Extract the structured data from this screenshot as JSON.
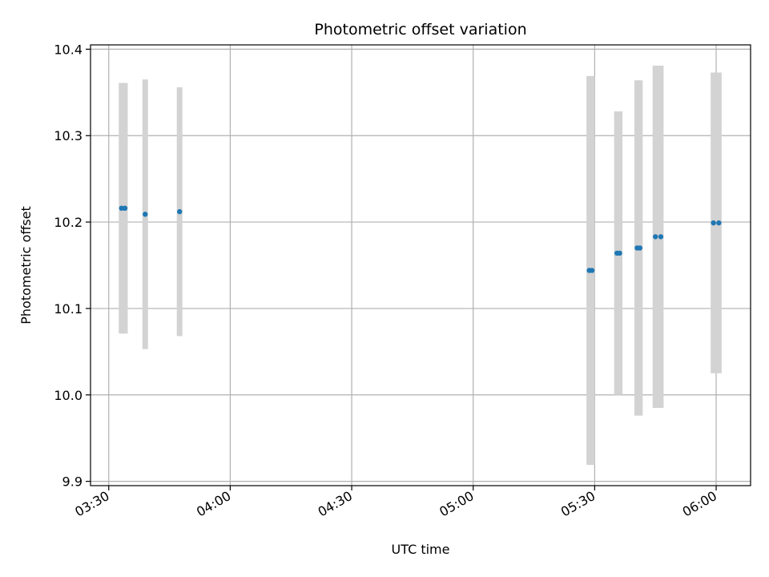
{
  "chart_data": {
    "type": "scatter",
    "title": "Photometric offset variation",
    "xlabel": "UTC time",
    "ylabel": "Photometric offset",
    "x_ticks": [
      "03:30",
      "04:00",
      "04:30",
      "05:00",
      "05:30",
      "06:00"
    ],
    "y_ticks": [
      "9.9",
      "10.0",
      "10.1",
      "10.2",
      "10.3",
      "10.4"
    ],
    "xlim": [
      "03:25:30",
      "06:08:30"
    ],
    "ylim": [
      9.895,
      10.405
    ],
    "grid": true,
    "colors": {
      "point": "#1f77b4",
      "errorbar": "#d3d3d3",
      "grid": "#b0b0b0"
    },
    "points": [
      {
        "t": "03:33:10",
        "y": 10.216,
        "err": 0.145
      },
      {
        "t": "03:34:00",
        "y": 10.216,
        "err": 0.145
      },
      {
        "t": "03:39:00",
        "y": 10.209,
        "err": 0.156
      },
      {
        "t": "03:47:30",
        "y": 10.212,
        "err": 0.144
      },
      {
        "t": "05:28:40",
        "y": 10.144,
        "err": 0.225
      },
      {
        "t": "05:29:20",
        "y": 10.144,
        "err": 0.225
      },
      {
        "t": "05:35:30",
        "y": 10.164,
        "err": 0.164
      },
      {
        "t": "05:36:10",
        "y": 10.164,
        "err": 0.164
      },
      {
        "t": "05:40:30",
        "y": 10.17,
        "err": 0.194
      },
      {
        "t": "05:41:10",
        "y": 10.17,
        "err": 0.194
      },
      {
        "t": "05:45:00",
        "y": 10.183,
        "err": 0.198
      },
      {
        "t": "05:46:20",
        "y": 10.183,
        "err": 0.198
      },
      {
        "t": "05:59:20",
        "y": 10.199,
        "err": 0.174
      },
      {
        "t": "06:00:40",
        "y": 10.199,
        "err": 0.174
      }
    ]
  }
}
